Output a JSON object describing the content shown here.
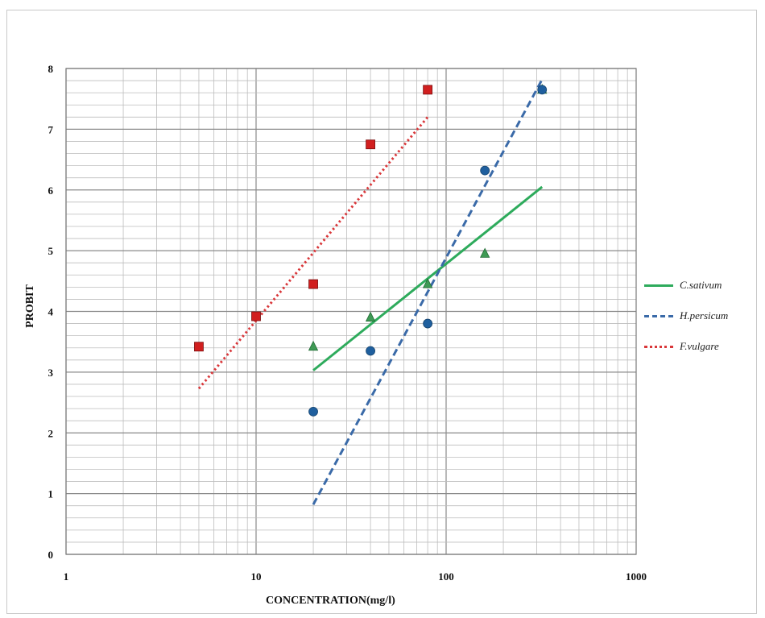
{
  "chart_data": {
    "type": "scatter",
    "xlabel": "CONCENTRATION(mg/l)",
    "ylabel": "PROBIT",
    "xscale": "log",
    "xlim": [
      1,
      1000
    ],
    "ylim": [
      0,
      8
    ],
    "x_ticks": [
      "1",
      "10",
      "100",
      "1000"
    ],
    "y_ticks": [
      "0",
      "1",
      "2",
      "3",
      "4",
      "5",
      "6",
      "7",
      "8"
    ],
    "grid": true,
    "legend_position": "right",
    "series": [
      {
        "name": "C.sativum",
        "color": "#2eab5c",
        "line_style": "solid",
        "marker": "triangle",
        "points": [
          [
            20,
            3.42
          ],
          [
            40,
            3.9
          ],
          [
            80,
            4.45
          ],
          [
            160,
            4.95
          ],
          [
            320,
            7.65
          ]
        ],
        "fit": [
          [
            20,
            3.03
          ],
          [
            320,
            6.05
          ]
        ]
      },
      {
        "name": "H.persicum",
        "color": "#3a6aa8",
        "marker_color": "#1f5f9e",
        "line_style": "dashed",
        "marker": "circle",
        "points": [
          [
            20,
            2.35
          ],
          [
            40,
            3.35
          ],
          [
            80,
            3.8
          ],
          [
            160,
            6.32
          ],
          [
            320,
            7.65
          ]
        ],
        "fit": [
          [
            20,
            0.82
          ],
          [
            320,
            7.82
          ]
        ]
      },
      {
        "name": "F.vulgare",
        "color": "#d9373a",
        "marker_color": "#d11f1f",
        "line_style": "dotted",
        "marker": "square",
        "points": [
          [
            5,
            3.42
          ],
          [
            10,
            3.92
          ],
          [
            20,
            4.45
          ],
          [
            40,
            6.75
          ],
          [
            80,
            7.65
          ]
        ],
        "fit": [
          [
            5,
            2.73
          ],
          [
            80,
            7.2
          ]
        ]
      }
    ]
  }
}
